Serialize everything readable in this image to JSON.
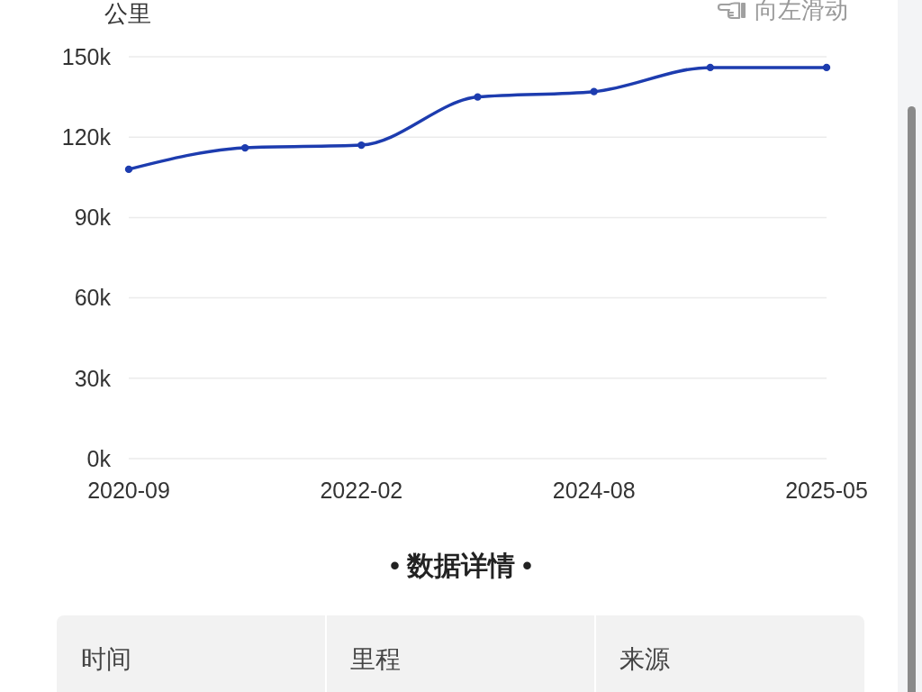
{
  "chart_data": {
    "type": "line",
    "ylabel": "公里",
    "categories": [
      "2020-09",
      null,
      "2022-02",
      null,
      "2024-08",
      null,
      "2025-05"
    ],
    "series": [
      {
        "color": "#1d3caf",
        "values": [
          108000,
          116000,
          117000,
          135000,
          137000,
          146000,
          146000
        ]
      }
    ],
    "ylim": [
      0,
      150000
    ],
    "yticks": [
      {
        "value": 0,
        "label": "0k"
      },
      {
        "value": 30000,
        "label": "30k"
      },
      {
        "value": 60000,
        "label": "60k"
      },
      {
        "value": 90000,
        "label": "90k"
      },
      {
        "value": 120000,
        "label": "120k"
      },
      {
        "value": 150000,
        "label": "150k"
      }
    ],
    "grid": "y",
    "marker": "circle",
    "line_style": "solid",
    "annotations": [
      "向左滑动",
      "• 数据详情 •",
      "时间",
      "里程",
      "来源"
    ]
  }
}
